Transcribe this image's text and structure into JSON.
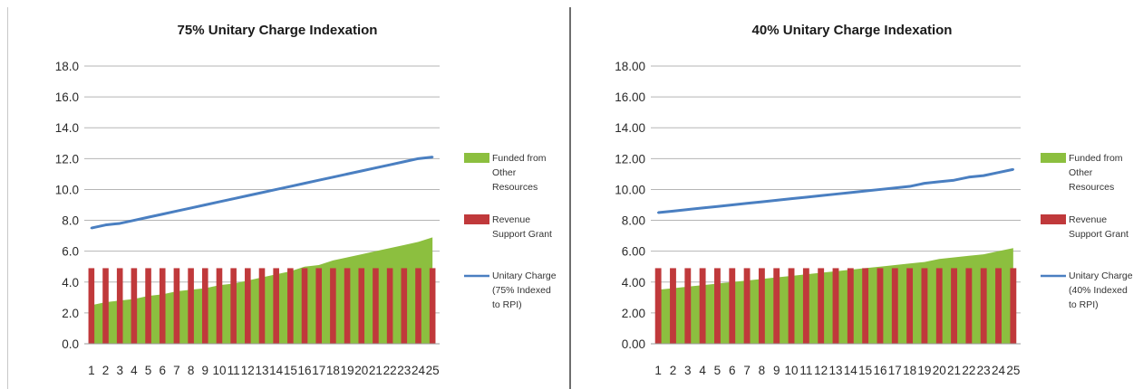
{
  "chart_data": [
    {
      "type": "bar",
      "title": "75% Unitary Charge Indexation",
      "xlabel": "",
      "ylabel": "",
      "ylim": [
        0,
        18
      ],
      "y_ticks": [
        "0.0",
        "2.0",
        "4.0",
        "6.0",
        "8.0",
        "10.0",
        "12.0",
        "14.0",
        "16.0",
        "18.0"
      ],
      "y_tick_values": [
        0,
        2,
        4,
        6,
        8,
        10,
        12,
        14,
        16,
        18
      ],
      "categories": [
        "1",
        "2",
        "3",
        "4",
        "5",
        "6",
        "7",
        "8",
        "9",
        "10",
        "11",
        "12",
        "13",
        "14",
        "15",
        "16",
        "17",
        "18",
        "19",
        "20",
        "21",
        "22",
        "23",
        "24",
        "25"
      ],
      "grid": "horizontal",
      "legend_position": "right",
      "series": [
        {
          "name": "Funded from Other Resources",
          "kind": "area",
          "color": "#8cbf3f",
          "legend_lines": [
            "Funded from",
            "Other",
            "Resources"
          ],
          "values": [
            2.5,
            2.7,
            2.8,
            2.9,
            3.1,
            3.2,
            3.4,
            3.5,
            3.6,
            3.8,
            3.9,
            4.1,
            4.3,
            4.5,
            4.7,
            5.0,
            5.1,
            5.4,
            5.6,
            5.8,
            6.0,
            6.2,
            6.4,
            6.6,
            6.9
          ]
        },
        {
          "name": "Revenue Support Grant",
          "kind": "bar",
          "color": "#c0393b",
          "legend_lines": [
            "Revenue",
            "Support Grant"
          ],
          "values": [
            4.9,
            4.9,
            4.9,
            4.9,
            4.9,
            4.9,
            4.9,
            4.9,
            4.9,
            4.9,
            4.9,
            4.9,
            4.9,
            4.9,
            4.9,
            4.9,
            4.9,
            4.9,
            4.9,
            4.9,
            4.9,
            4.9,
            4.9,
            4.9,
            4.9
          ]
        },
        {
          "name": "Unitary Charge (75% Indexed to RPI)",
          "kind": "line",
          "color": "#4a7fc1",
          "legend_lines": [
            "Unitary Charge",
            "(75% Indexed",
            "to RPI)"
          ],
          "values": [
            7.5,
            7.7,
            7.8,
            8.0,
            8.2,
            8.4,
            8.6,
            8.8,
            9.0,
            9.2,
            9.4,
            9.6,
            9.8,
            10.0,
            10.2,
            10.4,
            10.6,
            10.8,
            11.0,
            11.2,
            11.4,
            11.6,
            11.8,
            12.0,
            12.1
          ]
        }
      ]
    },
    {
      "type": "bar",
      "title": "40% Unitary Charge Indexation",
      "xlabel": "",
      "ylabel": "",
      "ylim": [
        0,
        18
      ],
      "y_ticks": [
        "0.00",
        "2.00",
        "4.00",
        "6.00",
        "8.00",
        "10.00",
        "12.00",
        "14.00",
        "16.00",
        "18.00"
      ],
      "y_tick_values": [
        0,
        2,
        4,
        6,
        8,
        10,
        12,
        14,
        16,
        18
      ],
      "categories": [
        "1",
        "2",
        "3",
        "4",
        "5",
        "6",
        "7",
        "8",
        "9",
        "10",
        "11",
        "12",
        "13",
        "14",
        "15",
        "16",
        "17",
        "18",
        "19",
        "20",
        "21",
        "22",
        "23",
        "24",
        "25"
      ],
      "grid": "horizontal",
      "legend_position": "right",
      "series": [
        {
          "name": "Funded from Other Resources",
          "kind": "area",
          "color": "#8cbf3f",
          "legend_lines": [
            "Funded from",
            "Other",
            "Resources"
          ],
          "values": [
            3.5,
            3.6,
            3.7,
            3.8,
            3.9,
            4.0,
            4.1,
            4.2,
            4.3,
            4.4,
            4.5,
            4.6,
            4.7,
            4.8,
            4.9,
            5.0,
            5.1,
            5.2,
            5.3,
            5.5,
            5.6,
            5.7,
            5.8,
            6.0,
            6.2
          ]
        },
        {
          "name": "Revenue Support Grant",
          "kind": "bar",
          "color": "#c0393b",
          "legend_lines": [
            "Revenue",
            "Support Grant"
          ],
          "values": [
            4.9,
            4.9,
            4.9,
            4.9,
            4.9,
            4.9,
            4.9,
            4.9,
            4.9,
            4.9,
            4.9,
            4.9,
            4.9,
            4.9,
            4.9,
            4.9,
            4.9,
            4.9,
            4.9,
            4.9,
            4.9,
            4.9,
            4.9,
            4.9,
            4.9
          ]
        },
        {
          "name": "Unitary Charge (40% Indexed to RPI)",
          "kind": "line",
          "color": "#4a7fc1",
          "legend_lines": [
            "Unitary Charge",
            "(40% Indexed",
            "to RPI)"
          ],
          "values": [
            8.5,
            8.6,
            8.7,
            8.8,
            8.9,
            9.0,
            9.1,
            9.2,
            9.3,
            9.4,
            9.5,
            9.6,
            9.7,
            9.8,
            9.9,
            10.0,
            10.1,
            10.2,
            10.4,
            10.5,
            10.6,
            10.8,
            10.9,
            11.1,
            11.3
          ]
        }
      ]
    }
  ]
}
